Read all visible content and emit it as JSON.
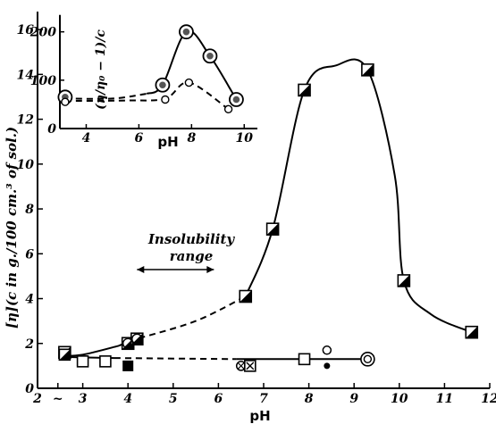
{
  "chart_data": [
    {
      "type": "scatter",
      "title": "",
      "xlabel": "pH",
      "ylabel": "[η](c in g./100 cm.³ of sol.)",
      "xlim": [
        2,
        12
      ],
      "ylim": [
        0,
        17
      ],
      "xticks": [
        "2",
        "~",
        "3",
        "4",
        "5",
        "6",
        "7",
        "8",
        "9",
        "10",
        "11",
        "12"
      ],
      "yticks": [
        "0",
        "2",
        "4",
        "6",
        "8",
        "10",
        "12",
        "14",
        "16"
      ],
      "grid": false,
      "legend": "none",
      "annotation": {
        "line1": "Insolubility",
        "line2": "range",
        "x_range": [
          4.2,
          5.9
        ]
      },
      "series": [
        {
          "marker": "half-filled-square",
          "x": [
            2.6,
            4.0,
            4.2,
            6.6,
            7.2,
            7.9,
            9.3,
            10.1,
            11.6
          ],
          "y": [
            1.6,
            2.0,
            2.2,
            4.1,
            7.1,
            13.3,
            14.2,
            4.8,
            2.5
          ],
          "curve": {
            "solid_x": [
              [
                2.5,
                3.8
              ],
              [
                6.6,
                11.6
              ]
            ],
            "dashed_x": [
              [
                3.8,
                6.6
              ]
            ]
          }
        },
        {
          "marker": "mixed-open",
          "x": [
            2.6,
            3.0,
            3.5,
            4.0,
            6.5,
            6.7,
            7.9,
            8.4,
            8.4,
            9.3
          ],
          "y": [
            1.5,
            1.2,
            1.2,
            1.0,
            1.0,
            1.0,
            1.3,
            1.7,
            1.0,
            1.3
          ],
          "curve": {
            "solid_x": [
              [
                2.5,
                3.7
              ],
              [
                6.4,
                9.3
              ]
            ],
            "dashed_x": [
              [
                3.7,
                6.4
              ]
            ]
          }
        }
      ]
    },
    {
      "type": "scatter",
      "title": "",
      "xlabel": "pH",
      "ylabel": "(η/η₀ − 1)/c",
      "xlim": [
        3,
        10.5
      ],
      "ylim": [
        0,
        240
      ],
      "xticks": [
        "4",
        "6",
        "8",
        "10"
      ],
      "yticks": [
        "0",
        "100",
        "200"
      ],
      "grid": false,
      "legend": "none",
      "series": [
        {
          "marker": "double-circle",
          "x": [
            3.2,
            6.9,
            7.8,
            8.7,
            9.7
          ],
          "y": [
            65,
            90,
            200,
            150,
            60
          ]
        },
        {
          "marker": "open-circle",
          "x": [
            3.2,
            7.0,
            7.9,
            9.4
          ],
          "y": [
            55,
            60,
            95,
            40
          ]
        }
      ]
    }
  ]
}
